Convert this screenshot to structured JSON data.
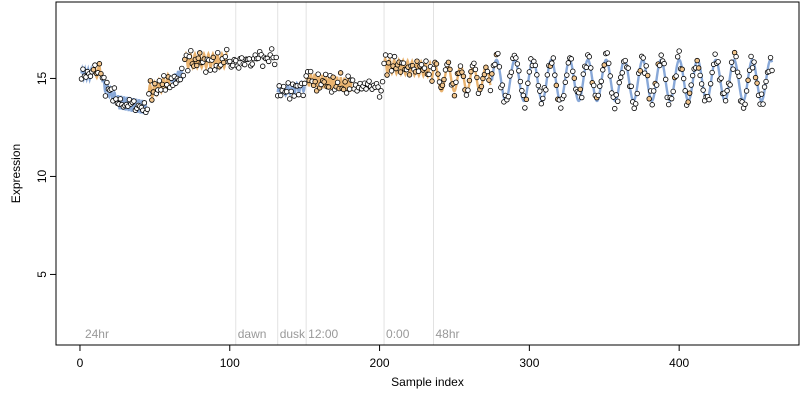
{
  "chart_data": {
    "type": "scatter",
    "title": "",
    "xlabel": "Sample index",
    "ylabel": "Expression",
    "xlim": [
      -16,
      480
    ],
    "ylim": [
      1.4,
      18.9
    ],
    "x_ticks": [
      0,
      100,
      200,
      300,
      400
    ],
    "y_ticks": [
      5,
      10,
      15
    ],
    "grid": false,
    "legend": "none",
    "phase_markers": [
      {
        "label": "24hr",
        "x": 2,
        "line": false
      },
      {
        "label": "dawn",
        "x": 104,
        "line": true
      },
      {
        "label": "dusk",
        "x": 132,
        "line": true
      },
      {
        "label": "12:00",
        "x": 151,
        "line": true
      },
      {
        "label": "0:00",
        "x": 203,
        "line": true
      },
      {
        "label": "48hr",
        "x": 236,
        "line": true
      }
    ],
    "segments": [
      {
        "x_start": 1,
        "x_end": 8,
        "base": 15.25,
        "amp": 0.25,
        "period": 2.0,
        "trend": -0.05,
        "style": "blue"
      },
      {
        "x_start": 9,
        "x_end": 14,
        "base": 15.3,
        "amp": 0.3,
        "period": 3.0,
        "trend": 0.1,
        "style": "orange"
      },
      {
        "x_start": 15,
        "x_end": 24,
        "base": 14.8,
        "amp": 0.3,
        "period": 2.5,
        "trend": -0.9,
        "style": "blue"
      },
      {
        "x_start": 25,
        "x_end": 45,
        "base": 13.8,
        "amp": 0.35,
        "period": 2.0,
        "trend": -0.3,
        "style": "blue"
      },
      {
        "x_start": 46,
        "x_end": 60,
        "base": 14.3,
        "amp": 0.35,
        "period": 3.0,
        "trend": 0.6,
        "style": "orange"
      },
      {
        "x_start": 61,
        "x_end": 69,
        "base": 14.8,
        "amp": 0.3,
        "period": 2.0,
        "trend": 0.5,
        "style": "blue"
      },
      {
        "x_start": 70,
        "x_end": 98,
        "base": 15.9,
        "amp": 0.35,
        "period": 3.0,
        "trend": 0.0,
        "style": "orange"
      },
      {
        "x_start": 99,
        "x_end": 131,
        "base": 15.7,
        "amp": 0.2,
        "period": 4.0,
        "trend": 0.4,
        "style": "black"
      },
      {
        "x_start": 132,
        "x_end": 150,
        "base": 14.3,
        "amp": 0.25,
        "period": 3.0,
        "trend": 0.3,
        "style": "blue"
      },
      {
        "x_start": 151,
        "x_end": 182,
        "base": 14.95,
        "amp": 0.3,
        "period": 2.5,
        "trend": -0.3,
        "style": "orange"
      },
      {
        "x_start": 183,
        "x_end": 202,
        "base": 14.55,
        "amp": 0.2,
        "period": 3.0,
        "trend": -0.1,
        "style": "black"
      },
      {
        "x_start": 203,
        "x_end": 234,
        "base": 15.65,
        "amp": 0.35,
        "period": 3.0,
        "trend": -0.2,
        "style": "orange"
      },
      {
        "x_start": 235,
        "x_end": 274,
        "base": 15.0,
        "amp": 0.65,
        "period": 8.5,
        "trend": 0.0,
        "style": "orange"
      },
      {
        "x_start": 275,
        "x_end": 462,
        "base": 14.9,
        "amp": 1.05,
        "period": 12.2,
        "trend": 0.0,
        "style": "mixed"
      }
    ]
  }
}
